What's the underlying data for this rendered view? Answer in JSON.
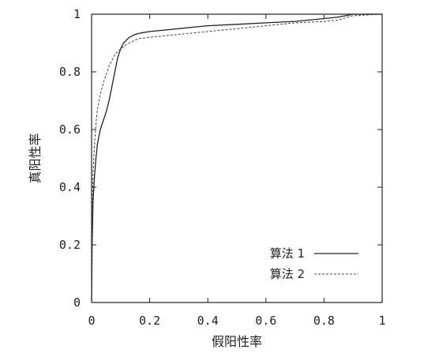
{
  "chart_data": {
    "type": "line",
    "title": "",
    "xlabel": "假阳性率",
    "ylabel": "真阳性率",
    "xlim": [
      0,
      1
    ],
    "ylim": [
      0,
      1
    ],
    "xticks": [
      "0",
      "0.2",
      "0.4",
      "0.6",
      "0.8",
      "1"
    ],
    "yticks": [
      "0",
      "0.2",
      "0.4",
      "0.6",
      "0.8",
      "1"
    ],
    "grid": false,
    "legend": "bottom-right",
    "series": [
      {
        "name": "算法 1",
        "style": "solid",
        "color": "#222222",
        "x": [
          0,
          0.002,
          0.005,
          0.01,
          0.015,
          0.02,
          0.03,
          0.04,
          0.05,
          0.06,
          0.07,
          0.08,
          0.09,
          0.1,
          0.11,
          0.12,
          0.13,
          0.14,
          0.15,
          0.17,
          0.2,
          0.25,
          0.3,
          0.35,
          0.4,
          0.5,
          0.6,
          0.7,
          0.8,
          0.85,
          0.9,
          1.0
        ],
        "y": [
          0,
          0.2,
          0.35,
          0.44,
          0.5,
          0.55,
          0.6,
          0.63,
          0.66,
          0.7,
          0.75,
          0.8,
          0.85,
          0.88,
          0.9,
          0.91,
          0.92,
          0.925,
          0.93,
          0.935,
          0.94,
          0.945,
          0.95,
          0.955,
          0.96,
          0.965,
          0.97,
          0.975,
          0.985,
          0.99,
          1.0,
          1.0
        ]
      },
      {
        "name": "算法 2",
        "style": "dashed",
        "color": "#444444",
        "x": [
          0,
          0.002,
          0.005,
          0.01,
          0.015,
          0.02,
          0.03,
          0.04,
          0.05,
          0.06,
          0.07,
          0.08,
          0.1,
          0.12,
          0.14,
          0.16,
          0.2,
          0.25,
          0.3,
          0.4,
          0.5,
          0.6,
          0.7,
          0.8,
          0.85,
          0.9,
          1.0
        ],
        "y": [
          0,
          0.3,
          0.45,
          0.55,
          0.62,
          0.67,
          0.72,
          0.76,
          0.79,
          0.82,
          0.84,
          0.86,
          0.88,
          0.895,
          0.905,
          0.915,
          0.92,
          0.925,
          0.93,
          0.94,
          0.95,
          0.96,
          0.97,
          0.975,
          0.98,
          0.995,
          1.0
        ]
      }
    ]
  }
}
